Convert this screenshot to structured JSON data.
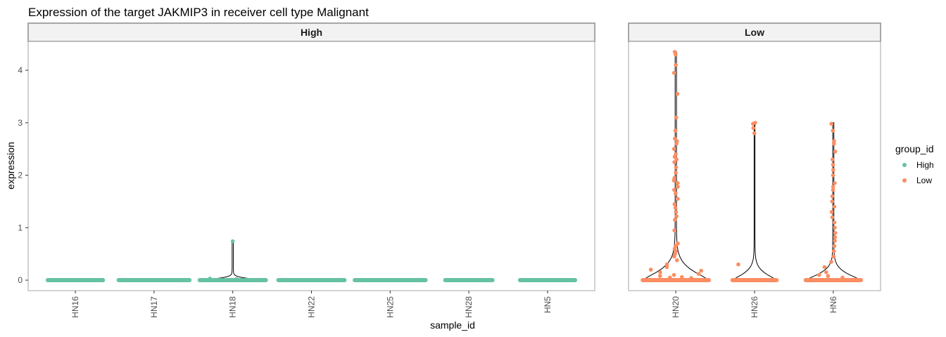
{
  "chart_data": {
    "type": "violin",
    "title": "Expression of the target JAKMIP3 in receiver cell type Malignant",
    "xlabel": "sample_id",
    "ylabel": "expression",
    "ylim": [
      -0.2,
      4.55
    ],
    "yticks": [
      0,
      1,
      2,
      3,
      4
    ],
    "grid": false,
    "legend": {
      "title": "group_id",
      "position": "right",
      "entries": [
        {
          "label": "High",
          "color": "#66C2A5"
        },
        {
          "label": "Low",
          "color": "#FC8D62"
        }
      ]
    },
    "facets": [
      {
        "label": "High",
        "color": "#66C2A5",
        "categories": [
          "HN16",
          "HN17",
          "HN18",
          "HN22",
          "HN25",
          "HN28",
          "HN5"
        ],
        "samples": [
          {
            "name": "HN16",
            "zero_halfwidth": 0.35,
            "points": []
          },
          {
            "name": "HN17",
            "zero_halfwidth": 0.45,
            "points": []
          },
          {
            "name": "HN18",
            "zero_halfwidth": 0.42,
            "max": 0.74,
            "points": [
              0.74,
              0.02,
              0.03
            ]
          },
          {
            "name": "HN22",
            "zero_halfwidth": 0.42,
            "points": []
          },
          {
            "name": "HN25",
            "zero_halfwidth": 0.45,
            "points": []
          },
          {
            "name": "HN28",
            "zero_halfwidth": 0.3,
            "points": []
          },
          {
            "name": "HN5",
            "zero_halfwidth": 0.35,
            "points": []
          }
        ]
      },
      {
        "label": "Low",
        "color": "#FC8D62",
        "categories": [
          "HN20",
          "HN26",
          "HN6"
        ],
        "samples": [
          {
            "name": "HN20",
            "zero_halfwidth": 0.42,
            "max": 4.35,
            "points": [
              4.35,
              4.3,
              4.1,
              3.95,
              3.55,
              3.1,
              2.85,
              2.7,
              2.65,
              2.6,
              2.5,
              2.4,
              2.35,
              2.3,
              2.25,
              2.15,
              2.05,
              1.95,
              1.9,
              1.85,
              1.78,
              1.72,
              1.65,
              1.55,
              1.45,
              1.38,
              1.3,
              1.22,
              1.15,
              0.95,
              0.7,
              0.65,
              0.6,
              0.55,
              0.5,
              0.45,
              0.38,
              0.3,
              0.25,
              0.2,
              0.18,
              0.15,
              0.12,
              0.1,
              0.08,
              0.06,
              0.05,
              0.04
            ]
          },
          {
            "name": "HN26",
            "zero_halfwidth": 0.28,
            "max": 3.0,
            "points": [
              3.0,
              2.98,
              2.9,
              2.8,
              0.3
            ]
          },
          {
            "name": "HN6",
            "zero_halfwidth": 0.35,
            "max": 3.0,
            "points": [
              2.98,
              2.85,
              2.65,
              2.6,
              2.45,
              2.3,
              2.2,
              2.1,
              2.0,
              1.85,
              1.78,
              1.72,
              1.6,
              1.5,
              1.4,
              1.3,
              1.2,
              1.1,
              1.0,
              0.9,
              0.82,
              0.75,
              0.65,
              0.55,
              0.45,
              0.35,
              0.25,
              0.15,
              0.1,
              0.08,
              0.05
            ]
          }
        ]
      }
    ]
  }
}
